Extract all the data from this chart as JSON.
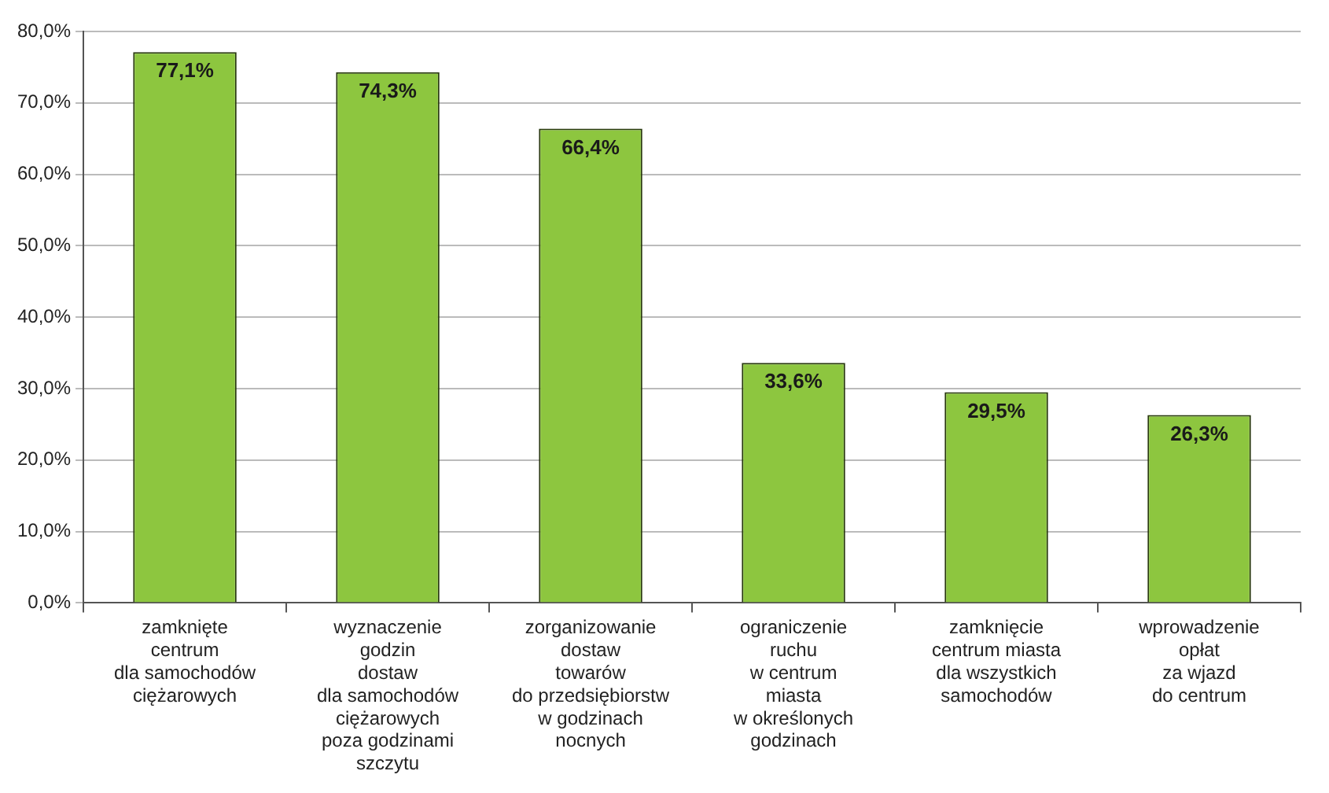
{
  "chart_data": {
    "type": "bar",
    "categories": [
      "zamknięte\ncentrum\ndla samochodów\nciężarowych",
      "wyznaczenie\ngodzin\ndostaw\ndla samochodów\nciężarowych\npoza godzinami\nszczytu",
      "zorganizowanie\ndostaw\ntowarów\ndo przedsiębiorstw\nw godzinach\nnocnych",
      "ograniczenie\nruchu\nw centrum\nmiasta\nw określonych\ngodzinach",
      "zamknięcie\ncentrum miasta\ndla wszystkich\nsamochodów",
      "wprowadzenie\nopłat\nza wjazd\ndo centrum"
    ],
    "values": [
      77.1,
      74.3,
      66.4,
      33.6,
      29.5,
      26.3
    ],
    "value_labels": [
      "77,1%",
      "74,3%",
      "66,4%",
      "33,6%",
      "29,5%",
      "26,3%"
    ],
    "color": "#8dc63f",
    "ylim": [
      0,
      80
    ],
    "yticks": [
      {
        "value": 0,
        "label": "0,0%"
      },
      {
        "value": 10,
        "label": "10,0%"
      },
      {
        "value": 20,
        "label": "20,0%"
      },
      {
        "value": 30,
        "label": "30,0%"
      },
      {
        "value": 40,
        "label": "40,0%"
      },
      {
        "value": 50,
        "label": "50,0%"
      },
      {
        "value": 60,
        "label": "60,0%"
      },
      {
        "value": 70,
        "label": "70,0%"
      },
      {
        "value": 80,
        "label": "80,0%"
      }
    ],
    "grid": "y"
  }
}
